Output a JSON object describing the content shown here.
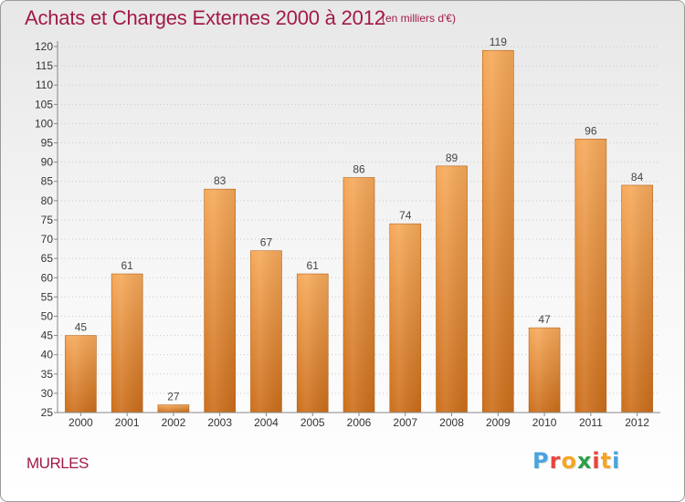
{
  "title": "Achats et Charges Externes 2000 à 2012",
  "unit_label": "(en milliers d'€)",
  "commune": "MURLES",
  "logo": {
    "letters": [
      "P",
      "r",
      "o",
      "x",
      "i",
      "t",
      "i"
    ],
    "colors": [
      "#4aa3df",
      "#e8453c",
      "#f5a623",
      "#2e9e48",
      "#e8453c",
      "#f5a623",
      "#4aa3df"
    ]
  },
  "colors": {
    "title": "#a21a4a",
    "bar_light": "#f6a95a",
    "bar_dark": "#cc6e1a",
    "label": "#444444"
  },
  "chart_data": {
    "type": "bar",
    "title": "Achats et Charges Externes 2000 à 2012",
    "subtitle": "(en milliers d'€)",
    "categories": [
      "2000",
      "2001",
      "2002",
      "2003",
      "2004",
      "2005",
      "2006",
      "2007",
      "2008",
      "2009",
      "2010",
      "2011",
      "2012"
    ],
    "values": [
      45,
      61,
      27,
      83,
      67,
      61,
      86,
      74,
      89,
      119,
      47,
      96,
      84
    ],
    "ylim": [
      25,
      120
    ],
    "yticks": [
      25,
      30,
      35,
      40,
      45,
      50,
      55,
      60,
      65,
      70,
      75,
      80,
      85,
      90,
      95,
      100,
      105,
      110,
      115,
      120
    ],
    "grid": true,
    "data_labels": true,
    "legend": "none"
  }
}
